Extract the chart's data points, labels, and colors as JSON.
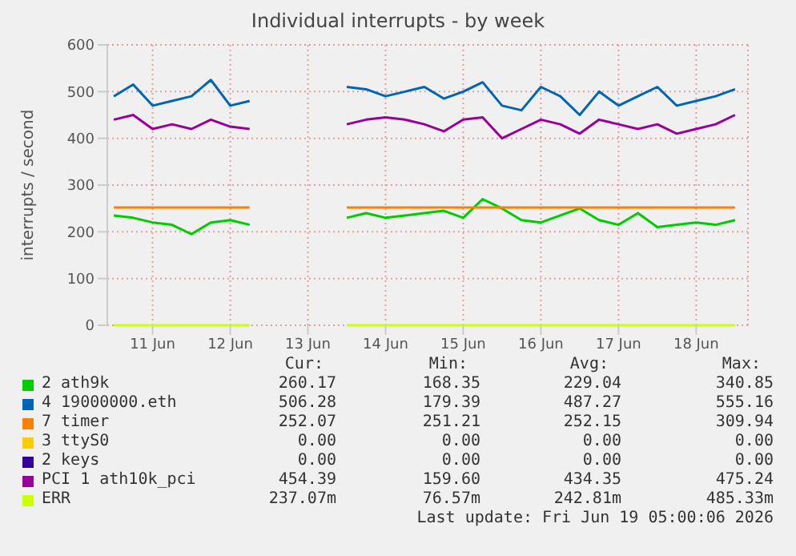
{
  "chart_data": {
    "type": "line",
    "title": "Individual interrupts - by week",
    "ylabel": "interrupts / second",
    "x": [
      "2026-06-10T12:00",
      "2026-06-10T18:00",
      "2026-06-11T00:00",
      "2026-06-11T06:00",
      "2026-06-11T12:00",
      "2026-06-11T18:00",
      "2026-06-12T00:00",
      "2026-06-12T06:00",
      "2026-06-12T12:00",
      "2026-06-12T18:00",
      "2026-06-13T00:00",
      "2026-06-13T06:00",
      "2026-06-13T12:00",
      "2026-06-13T18:00",
      "2026-06-14T00:00",
      "2026-06-14T06:00",
      "2026-06-14T12:00",
      "2026-06-14T18:00",
      "2026-06-15T00:00",
      "2026-06-15T06:00",
      "2026-06-15T12:00",
      "2026-06-15T18:00",
      "2026-06-16T00:00",
      "2026-06-16T06:00",
      "2026-06-16T12:00",
      "2026-06-16T18:00",
      "2026-06-17T00:00",
      "2026-06-17T06:00",
      "2026-06-17T12:00",
      "2026-06-17T18:00",
      "2026-06-18T00:00",
      "2026-06-18T06:00",
      "2026-06-18T12:00"
    ],
    "series": [
      {
        "name": "2 ath9k",
        "color": "#00cc00",
        "values": [
          235,
          230,
          220,
          215,
          195,
          220,
          225,
          215,
          null,
          null,
          null,
          null,
          230,
          240,
          230,
          235,
          240,
          245,
          230,
          270,
          250,
          225,
          220,
          235,
          250,
          225,
          215,
          240,
          210,
          215,
          220,
          215,
          225
        ]
      },
      {
        "name": "4 19000000.eth",
        "color": "#0066b3",
        "values": [
          490,
          515,
          470,
          480,
          490,
          525,
          470,
          480,
          null,
          null,
          null,
          null,
          510,
          505,
          490,
          500,
          510,
          485,
          500,
          520,
          470,
          460,
          510,
          490,
          450,
          500,
          470,
          490,
          510,
          470,
          480,
          490,
          505
        ]
      },
      {
        "name": "7 timer",
        "color": "#ff8000",
        "values": [
          252,
          252,
          252,
          252,
          252,
          252,
          252,
          252,
          null,
          null,
          null,
          null,
          252,
          252,
          252,
          252,
          252,
          252,
          252,
          252,
          252,
          252,
          252,
          252,
          252,
          252,
          252,
          252,
          252,
          252,
          252,
          252,
          252
        ]
      },
      {
        "name": "3 ttyS0",
        "color": "#ffcc00",
        "values": [
          null,
          null,
          null,
          null,
          null,
          null,
          null,
          null,
          null,
          null,
          null,
          null,
          null,
          null,
          null,
          null,
          null,
          null,
          null,
          null,
          null,
          null,
          null,
          null,
          null,
          null,
          null,
          null,
          null,
          null,
          null,
          null,
          null
        ]
      },
      {
        "name": "2 keys",
        "color": "#330099",
        "values": [
          null,
          null,
          null,
          null,
          null,
          null,
          null,
          null,
          null,
          null,
          null,
          null,
          null,
          null,
          null,
          null,
          null,
          null,
          null,
          null,
          null,
          null,
          null,
          null,
          null,
          null,
          null,
          null,
          null,
          null,
          null,
          null,
          null
        ]
      },
      {
        "name": "PCI 1 ath10k_pci",
        "color": "#990099",
        "values": [
          440,
          450,
          420,
          430,
          420,
          440,
          425,
          420,
          null,
          null,
          null,
          null,
          430,
          440,
          445,
          440,
          430,
          415,
          440,
          445,
          400,
          420,
          440,
          430,
          410,
          440,
          430,
          420,
          430,
          410,
          420,
          430,
          450
        ]
      },
      {
        "name": "ERR",
        "color": "#ccff00",
        "values": [
          0,
          0,
          0,
          0,
          0,
          0,
          0,
          0,
          null,
          null,
          null,
          null,
          0,
          0,
          0,
          0,
          0,
          0,
          0,
          0,
          0,
          0,
          0,
          0,
          0,
          0,
          0,
          0,
          0,
          0,
          0,
          0,
          0
        ]
      }
    ],
    "xlim": [
      "2026-06-10T10:00",
      "2026-06-18T16:00"
    ],
    "xticks": [
      {
        "value": "2026-06-11",
        "label": "11 Jun"
      },
      {
        "value": "2026-06-12",
        "label": "12 Jun"
      },
      {
        "value": "2026-06-13",
        "label": "13 Jun"
      },
      {
        "value": "2026-06-14",
        "label": "14 Jun"
      },
      {
        "value": "2026-06-15",
        "label": "15 Jun"
      },
      {
        "value": "2026-06-16",
        "label": "16 Jun"
      },
      {
        "value": "2026-06-17",
        "label": "17 Jun"
      },
      {
        "value": "2026-06-18",
        "label": "18 Jun"
      }
    ],
    "ylim": [
      0,
      600
    ],
    "yticks": [
      0,
      100,
      200,
      300,
      400,
      500,
      600
    ],
    "grid": true,
    "legend": "bottom",
    "marker": "none",
    "line_style": "solid",
    "annotations": [
      "Cur:",
      "Min:",
      "Avg:",
      "Max:",
      "260.17",
      "168.35",
      "229.04",
      "340.85",
      "506.28",
      "179.39",
      "487.27",
      "555.16",
      "252.07",
      "251.21",
      "252.15",
      "309.94",
      "0.00",
      "0.00",
      "0.00",
      "0.00",
      "0.00",
      "0.00",
      "0.00",
      "0.00",
      "454.39",
      "159.60",
      "434.35",
      "475.24",
      "237.07m",
      "76.57m",
      "242.81m",
      "485.33m",
      "Last update: Fri Jun 19 05:00:06 2026"
    ]
  }
}
